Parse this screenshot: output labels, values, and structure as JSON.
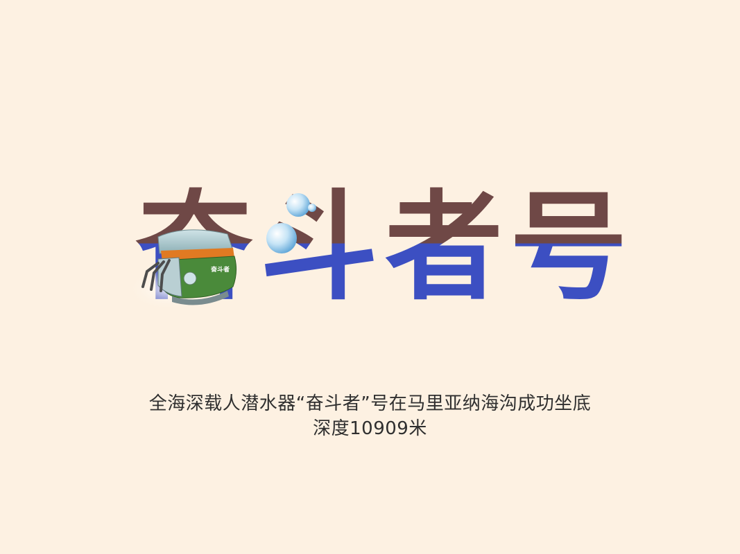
{
  "title": {
    "chars": [
      "奋",
      "斗",
      "者",
      "号"
    ]
  },
  "subtitle": {
    "line1": "全海深载人潜水器“奋斗者”号在马里亚纳海沟成功坐底",
    "line2": "深度10909米"
  },
  "submersible": {
    "hull_label": "奋斗者"
  },
  "colors": {
    "background": "#fdf1e2",
    "title_top": "#6f4846",
    "title_bottom": "#3c4fc2",
    "sub_green": "#4a8a3a",
    "sub_orange": "#e07a22",
    "bubble": "#8fc6ea"
  },
  "icons": {
    "submersible": "submersible-icon",
    "bubbles": "bubbles-icon"
  }
}
